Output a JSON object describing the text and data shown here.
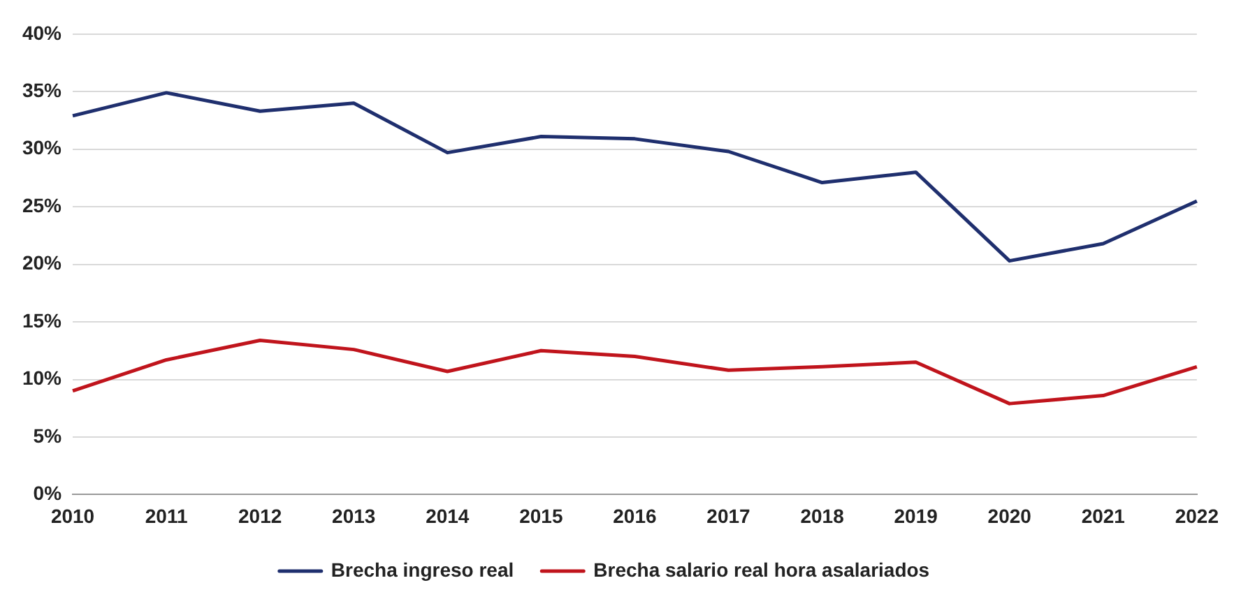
{
  "chart_data": {
    "type": "line",
    "categories": [
      "2010",
      "2011",
      "2012",
      "2013",
      "2014",
      "2015",
      "2016",
      "2017",
      "2018",
      "2019",
      "2020",
      "2021",
      "2022"
    ],
    "series": [
      {
        "name": "Brecha ingreso real",
        "color": "#1f2f6e",
        "values": [
          32.9,
          34.9,
          33.3,
          34.0,
          29.7,
          31.1,
          30.9,
          29.8,
          27.1,
          28.0,
          20.3,
          21.8,
          25.5
        ]
      },
      {
        "name": "Brecha salario real hora asalariados",
        "color": "#c0141c",
        "values": [
          9.0,
          11.7,
          13.4,
          12.6,
          10.7,
          12.5,
          12.0,
          10.8,
          11.1,
          11.5,
          7.9,
          8.6,
          11.1
        ]
      }
    ],
    "ylim": [
      0,
      40
    ],
    "yticks": [
      {
        "value": 0,
        "label": "0%"
      },
      {
        "value": 5,
        "label": "5%"
      },
      {
        "value": 10,
        "label": "10%"
      },
      {
        "value": 15,
        "label": "15%"
      },
      {
        "value": 20,
        "label": "20%"
      },
      {
        "value": 25,
        "label": "25%"
      },
      {
        "value": 30,
        "label": "30%"
      },
      {
        "value": 35,
        "label": "35%"
      },
      {
        "value": 40,
        "label": "40%"
      }
    ],
    "grid": "y",
    "legend": "bottom",
    "marker": "none",
    "line_style": "solid"
  }
}
